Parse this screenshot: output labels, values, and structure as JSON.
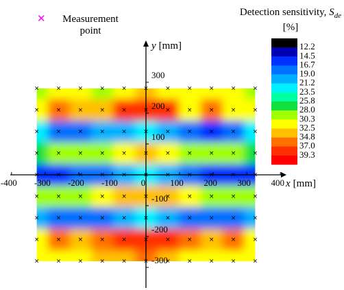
{
  "chart_data": {
    "type": "contour",
    "x": [
      -325,
      -260,
      -195,
      -130,
      -65,
      0,
      65,
      130,
      195,
      260,
      325
    ],
    "y": [
      280,
      210,
      140,
      70,
      0,
      -70,
      -140,
      -210,
      -280
    ],
    "z": [
      [
        30,
        31,
        31,
        30,
        32,
        33,
        32,
        31,
        31,
        31,
        30
      ],
      [
        31,
        36,
        33,
        33,
        38,
        39,
        38,
        32,
        35,
        32,
        31
      ],
      [
        22,
        17,
        18,
        20,
        20,
        22,
        20,
        18,
        16,
        18,
        22
      ],
      [
        27,
        28,
        29,
        30,
        32,
        34,
        32,
        30,
        28,
        28,
        27
      ],
      [
        16,
        15,
        17,
        18,
        20,
        22,
        20,
        18,
        16,
        15,
        16
      ],
      [
        28,
        29,
        30,
        31,
        33,
        34,
        33,
        31,
        30,
        29,
        28
      ],
      [
        20,
        17,
        17,
        18,
        20,
        22,
        20,
        18,
        17,
        17,
        20
      ],
      [
        32,
        36,
        34,
        35,
        38,
        39,
        38,
        35,
        34,
        36,
        32
      ],
      [
        31,
        32,
        31,
        33,
        34,
        35,
        34,
        31,
        32,
        32,
        31
      ]
    ],
    "levels": [
      12.2,
      14.5,
      16.7,
      19.0,
      21.2,
      23.5,
      25.8,
      28.0,
      30.3,
      32.5,
      34.8,
      37.0,
      39.3
    ],
    "level_labels": [
      "12.2",
      "14.5",
      "16.7",
      "19.0",
      "21.2",
      "23.5",
      "25.8",
      "28.0",
      "30.3",
      "32.5",
      "34.8",
      "37.0",
      "39.3"
    ],
    "colors": [
      "#000000",
      "#0000b0",
      "#0030ff",
      "#0070ff",
      "#00b0ff",
      "#00f0ff",
      "#00ffa0",
      "#10e040",
      "#a0ff00",
      "#ffff00",
      "#ffc000",
      "#ff7000",
      "#ff3000",
      "#ff0000"
    ],
    "marker_color": "#ff00ff",
    "marker_label": "Measurement point",
    "colorbar_label": {
      "text": "Detection sensitivity,",
      "symbol": "S",
      "subscript": "de",
      "unit": "[%]"
    },
    "x_label": {
      "symbol": "x",
      "unit": "[mm]"
    },
    "y_label": {
      "symbol": "y",
      "unit": "[mm]"
    },
    "xlim": [
      -420,
      420
    ],
    "ylim": [
      -360,
      380
    ],
    "xticks": [
      -400,
      -300,
      -200,
      -100,
      0,
      100,
      200,
      300,
      400
    ],
    "yticks": [
      -300,
      -200,
      -100,
      100,
      200,
      300
    ]
  }
}
